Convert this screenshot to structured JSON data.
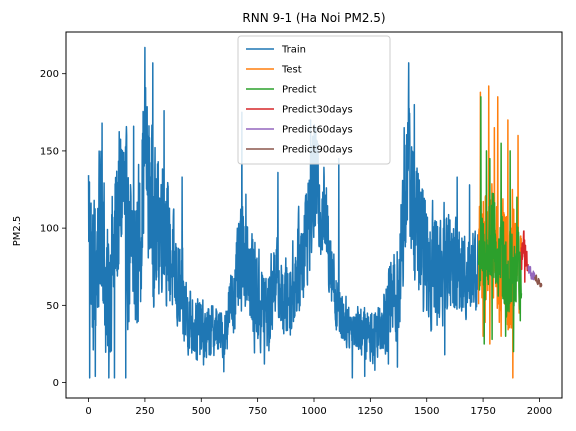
{
  "chart_data": {
    "type": "line",
    "title": "RNN 9-1 (Ha Noi PM2.5)",
    "xlabel": "",
    "ylabel": "PM2.5",
    "xlim": [
      -100,
      2100
    ],
    "ylim": [
      -10,
      227
    ],
    "x_ticks": [
      0,
      250,
      500,
      750,
      1000,
      1250,
      1500,
      1750,
      2000
    ],
    "y_ticks": [
      0,
      50,
      100,
      150,
      200
    ],
    "grid": false,
    "legend_position": "top-center",
    "series": [
      {
        "name": "Train",
        "color": "#1f77b4",
        "x_range": [
          0,
          1730
        ],
        "anchors": [
          [
            0,
            115
          ],
          [
            20,
            60
          ],
          [
            40,
            85
          ],
          [
            60,
            118
          ],
          [
            80,
            45
          ],
          [
            100,
            70
          ],
          [
            120,
            95
          ],
          [
            150,
            130
          ],
          [
            180,
            85
          ],
          [
            200,
            70
          ],
          [
            230,
            100
          ],
          [
            250,
            160
          ],
          [
            270,
            120
          ],
          [
            300,
            95
          ],
          [
            330,
            110
          ],
          [
            350,
            90
          ],
          [
            380,
            70
          ],
          [
            420,
            50
          ],
          [
            450,
            40
          ],
          [
            480,
            35
          ],
          [
            520,
            30
          ],
          [
            560,
            35
          ],
          [
            600,
            30
          ],
          [
            620,
            45
          ],
          [
            650,
            60
          ],
          [
            680,
            80
          ],
          [
            700,
            90
          ],
          [
            720,
            65
          ],
          [
            760,
            50
          ],
          [
            800,
            45
          ],
          [
            830,
            75
          ],
          [
            860,
            50
          ],
          [
            900,
            60
          ],
          [
            940,
            80
          ],
          [
            980,
            110
          ],
          [
            1000,
            130
          ],
          [
            1020,
            120
          ],
          [
            1050,
            105
          ],
          [
            1080,
            75
          ],
          [
            1100,
            50
          ],
          [
            1150,
            38
          ],
          [
            1200,
            35
          ],
          [
            1250,
            30
          ],
          [
            1300,
            40
          ],
          [
            1350,
            55
          ],
          [
            1380,
            65
          ],
          [
            1400,
            120
          ],
          [
            1420,
            140
          ],
          [
            1450,
            100
          ],
          [
            1500,
            80
          ],
          [
            1550,
            75
          ],
          [
            1600,
            80
          ],
          [
            1650,
            70
          ],
          [
            1700,
            75
          ],
          [
            1730,
            72
          ]
        ],
        "spread_anchors": [
          [
            0,
            50
          ],
          [
            200,
            55
          ],
          [
            300,
            50
          ],
          [
            450,
            25
          ],
          [
            600,
            15
          ],
          [
            700,
            40
          ],
          [
            850,
            25
          ],
          [
            1000,
            40
          ],
          [
            1150,
            15
          ],
          [
            1300,
            20
          ],
          [
            1420,
            50
          ],
          [
            1600,
            35
          ],
          [
            1730,
            30
          ]
        ],
        "peaks": [
          [
            25,
            118
          ],
          [
            60,
            168
          ],
          [
            200,
            166
          ],
          [
            250,
            217
          ],
          [
            285,
            207
          ],
          [
            335,
            176
          ],
          [
            415,
            133
          ],
          [
            680,
            175
          ],
          [
            840,
            136
          ],
          [
            985,
            170
          ],
          [
            1010,
            157
          ],
          [
            1110,
            145
          ],
          [
            1400,
            165
          ],
          [
            1420,
            207
          ],
          [
            1445,
            180
          ],
          [
            1635,
            133
          ],
          [
            1690,
            128
          ]
        ],
        "troughs": [
          [
            5,
            3
          ],
          [
            30,
            4
          ],
          [
            90,
            3
          ],
          [
            115,
            3
          ],
          [
            165,
            3
          ],
          [
            600,
            7
          ],
          [
            780,
            12
          ],
          [
            1170,
            3
          ],
          [
            1225,
            4
          ],
          [
            1270,
            8
          ],
          [
            1330,
            12
          ],
          [
            1370,
            10
          ],
          [
            1580,
            18
          ]
        ]
      },
      {
        "name": "Test",
        "color": "#ff7f0e",
        "x_range": [
          1730,
          1920
        ],
        "anchors": [
          [
            1730,
            80
          ],
          [
            1760,
            85
          ],
          [
            1790,
            95
          ],
          [
            1820,
            80
          ],
          [
            1850,
            75
          ],
          [
            1880,
            70
          ],
          [
            1900,
            80
          ],
          [
            1920,
            75
          ]
        ],
        "spread_anchors": [
          [
            1730,
            40
          ],
          [
            1800,
            45
          ],
          [
            1860,
            40
          ],
          [
            1920,
            30
          ]
        ],
        "peaks": [
          [
            1738,
            188
          ],
          [
            1760,
            120
          ],
          [
            1775,
            192
          ],
          [
            1800,
            165
          ],
          [
            1815,
            185
          ],
          [
            1860,
            170
          ],
          [
            1880,
            125
          ],
          [
            1905,
            160
          ]
        ],
        "troughs": [
          [
            1750,
            30
          ],
          [
            1780,
            25
          ],
          [
            1830,
            30
          ],
          [
            1882,
            3
          ],
          [
            1910,
            45
          ]
        ]
      },
      {
        "name": "Predict",
        "color": "#2ca02c",
        "x_range": [
          1730,
          1920
        ],
        "anchors": [
          [
            1730,
            80
          ],
          [
            1760,
            80
          ],
          [
            1790,
            90
          ],
          [
            1820,
            78
          ],
          [
            1850,
            72
          ],
          [
            1880,
            68
          ],
          [
            1900,
            75
          ],
          [
            1920,
            72
          ]
        ],
        "spread_anchors": [
          [
            1730,
            30
          ],
          [
            1800,
            35
          ],
          [
            1860,
            30
          ],
          [
            1920,
            22
          ]
        ],
        "peaks": [
          [
            1740,
            185
          ],
          [
            1765,
            150
          ],
          [
            1780,
            145
          ],
          [
            1830,
            155
          ],
          [
            1870,
            150
          ],
          [
            1900,
            120
          ]
        ],
        "troughs": [
          [
            1755,
            25
          ],
          [
            1790,
            28
          ],
          [
            1850,
            30
          ],
          [
            1885,
            20
          ],
          [
            1915,
            40
          ]
        ]
      },
      {
        "name": "Predict30days",
        "color": "#d62728",
        "x_range": [
          1920,
          1950
        ],
        "anchors": [
          [
            1920,
            80
          ],
          [
            1930,
            90
          ],
          [
            1940,
            78
          ],
          [
            1950,
            75
          ]
        ],
        "spread_anchors": [
          [
            1920,
            12
          ],
          [
            1950,
            6
          ]
        ],
        "peaks": [
          [
            1930,
            98
          ]
        ],
        "troughs": [
          [
            1935,
            65
          ]
        ]
      },
      {
        "name": "Predict60days",
        "color": "#9467bd",
        "x_range": [
          1950,
          1980
        ],
        "anchors": [
          [
            1950,
            75
          ],
          [
            1965,
            70
          ],
          [
            1980,
            68
          ]
        ],
        "spread_anchors": [
          [
            1950,
            4
          ],
          [
            1980,
            3
          ]
        ],
        "peaks": [],
        "troughs": []
      },
      {
        "name": "Predict90days",
        "color": "#8c564b",
        "x_range": [
          1980,
          2010
        ],
        "anchors": [
          [
            1980,
            68
          ],
          [
            1995,
            66
          ],
          [
            2010,
            62
          ]
        ],
        "spread_anchors": [
          [
            1980,
            3
          ],
          [
            2010,
            2
          ]
        ],
        "peaks": [],
        "troughs": []
      }
    ]
  }
}
